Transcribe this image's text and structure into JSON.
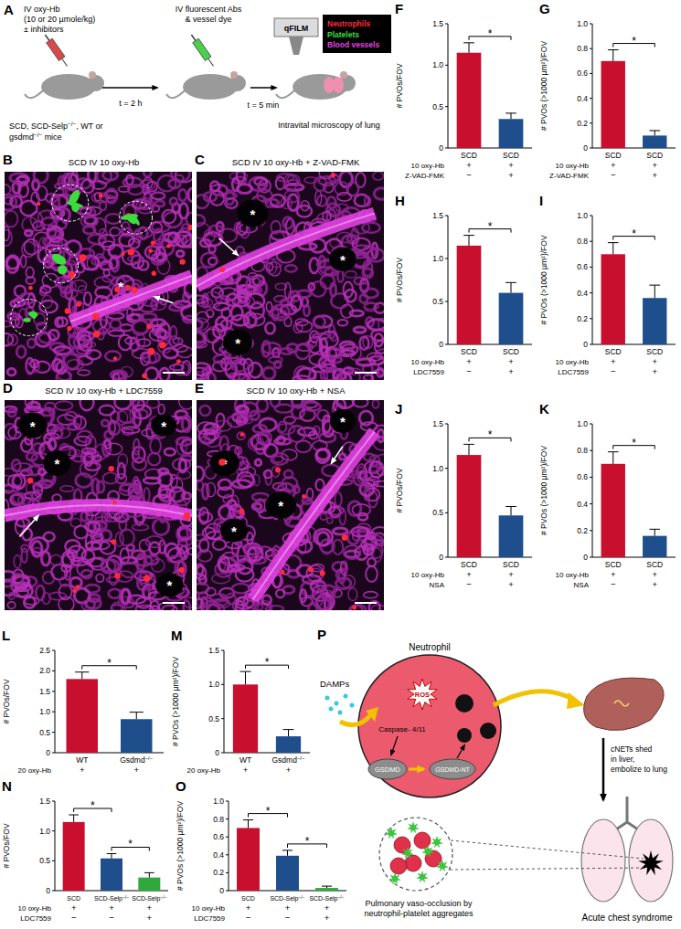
{
  "schematic": {
    "panel": "A",
    "injection": [
      "IV oxy-Hb",
      "(10 or 20 µmole/kg)",
      "± inhibitors"
    ],
    "mice": [
      "SCD, SCD-Selp−/−, WT or",
      "gsdmd−/− mice"
    ],
    "time1": "t = 2 h",
    "stain": [
      "IV fluorescent Abs",
      "& vessel dye"
    ],
    "time2": "t = 5 min",
    "method": "qFILM",
    "legend": [
      {
        "label": "Neutrophils",
        "color": "#ff2a3c"
      },
      {
        "label": "Platelets",
        "color": "#3ddc3d"
      },
      {
        "label": "Blood vessels",
        "color": "#e040e0"
      }
    ],
    "outcome": "Intravital microscopy of lung"
  },
  "images": {
    "marker": "*",
    "panels": [
      {
        "panel": "B",
        "caption": "SCD IV 10 oxy-Hb"
      },
      {
        "panel": "C",
        "caption": "SCD IV 10 oxy-Hb + Z-VAD-FMK"
      },
      {
        "panel": "D",
        "caption": "SCD IV 10 oxy-Hb + LDC7559"
      },
      {
        "panel": "E",
        "caption": "SCD IV 10 oxy-Hb + NSA"
      }
    ]
  },
  "chart_data": [
    {
      "panel": "F",
      "type": "bar",
      "y_label": "# PVOs/FOV",
      "categories": [
        "SCD",
        "SCD"
      ],
      "values": [
        1.15,
        0.35
      ],
      "errors": [
        0.12,
        0.07
      ],
      "colors": [
        "#c8102e",
        "#1f4e8c"
      ],
      "ylim": [
        0,
        1.5
      ],
      "yticks": [
        0,
        0.5,
        {
          "value": 1,
          "label": "1.0"
        },
        1.5
      ],
      "condition_rows": [
        {
          "label": "10 oxy-Hb",
          "marks": [
            "+",
            "+"
          ]
        },
        {
          "label": "Z-VAD-FMK",
          "marks": [
            "−",
            "+"
          ]
        }
      ],
      "annotations": [
        {
          "text": "*",
          "from": 0,
          "to": 1
        }
      ]
    },
    {
      "panel": "G",
      "type": "bar",
      "y_label": "# PVOs (>1000 µm²)/FOV",
      "categories": [
        "SCD",
        "SCD"
      ],
      "values": [
        0.7,
        0.1
      ],
      "errors": [
        0.09,
        0.04
      ],
      "colors": [
        "#c8102e",
        "#1f4e8c"
      ],
      "ylim": [
        0,
        1
      ],
      "yticks": [
        0,
        0.2,
        0.4,
        0.6,
        0.8,
        {
          "value": 1,
          "label": "1.0"
        }
      ],
      "condition_rows": [
        {
          "label": "10 oxy-Hb",
          "marks": [
            "+",
            "+"
          ]
        },
        {
          "label": "Z-VAD-FMK",
          "marks": [
            "−",
            "+"
          ]
        }
      ],
      "annotations": [
        {
          "text": "*",
          "from": 0,
          "to": 1
        }
      ]
    },
    {
      "panel": "H",
      "type": "bar",
      "y_label": "# PVOs/FOV",
      "categories": [
        "SCD",
        "SCD"
      ],
      "values": [
        1.15,
        0.6
      ],
      "errors": [
        0.12,
        0.12
      ],
      "colors": [
        "#c8102e",
        "#1f4e8c"
      ],
      "ylim": [
        0,
        1.5
      ],
      "yticks": [
        0,
        0.5,
        {
          "value": 1,
          "label": "1.0"
        },
        1.5
      ],
      "condition_rows": [
        {
          "label": "10 oxy-Hb",
          "marks": [
            "+",
            "+"
          ]
        },
        {
          "label": "LDC7559",
          "marks": [
            "−",
            "+"
          ]
        }
      ],
      "annotations": [
        {
          "text": "*",
          "from": 0,
          "to": 1
        }
      ]
    },
    {
      "panel": "I",
      "type": "bar",
      "y_label": "# PVOs (>1000 µm²)/FOV",
      "categories": [
        "SCD",
        "SCD"
      ],
      "values": [
        0.7,
        0.36
      ],
      "errors": [
        0.09,
        0.1
      ],
      "colors": [
        "#c8102e",
        "#1f4e8c"
      ],
      "ylim": [
        0,
        1
      ],
      "yticks": [
        0,
        0.2,
        0.4,
        0.6,
        0.8,
        {
          "value": 1,
          "label": "1.0"
        }
      ],
      "condition_rows": [
        {
          "label": "10 oxy-Hb",
          "marks": [
            "+",
            "+"
          ]
        },
        {
          "label": "LDC7559",
          "marks": [
            "−",
            "+"
          ]
        }
      ],
      "annotations": [
        {
          "text": "*",
          "from": 0,
          "to": 1
        }
      ]
    },
    {
      "panel": "J",
      "type": "bar",
      "y_label": "# PVOs/FOV",
      "categories": [
        "SCD",
        "SCD"
      ],
      "values": [
        1.15,
        0.47
      ],
      "errors": [
        0.12,
        0.1
      ],
      "colors": [
        "#c8102e",
        "#1f4e8c"
      ],
      "ylim": [
        0,
        1.5
      ],
      "yticks": [
        0,
        0.5,
        {
          "value": 1,
          "label": "1.0"
        },
        1.5
      ],
      "condition_rows": [
        {
          "label": "10 oxy-Hb",
          "marks": [
            "+",
            "+"
          ]
        },
        {
          "label": "NSA",
          "marks": [
            "−",
            "+"
          ]
        }
      ],
      "annotations": [
        {
          "text": "*",
          "from": 0,
          "to": 1
        }
      ]
    },
    {
      "panel": "K",
      "type": "bar",
      "y_label": "# PVOs (>1000 µm²)/FOV",
      "categories": [
        "SCD",
        "SCD"
      ],
      "values": [
        0.7,
        0.16
      ],
      "errors": [
        0.09,
        0.05
      ],
      "colors": [
        "#c8102e",
        "#1f4e8c"
      ],
      "ylim": [
        0,
        1
      ],
      "yticks": [
        0,
        0.2,
        0.4,
        0.6,
        0.8,
        {
          "value": 1,
          "label": "1.0"
        }
      ],
      "condition_rows": [
        {
          "label": "10 oxy-Hb",
          "marks": [
            "+",
            "+"
          ]
        },
        {
          "label": "NSA",
          "marks": [
            "−",
            "+"
          ]
        }
      ],
      "annotations": [
        {
          "text": "*",
          "from": 0,
          "to": 1
        }
      ]
    },
    {
      "panel": "L",
      "type": "bar",
      "y_label": "# PVOs/FOV",
      "categories": [
        "WT",
        "Gsdmd−/−"
      ],
      "values": [
        1.8,
        0.82
      ],
      "errors": [
        0.17,
        0.17
      ],
      "colors": [
        "#c8102e",
        "#1f4e8c"
      ],
      "ylim": [
        0,
        2.5
      ],
      "yticks": [
        0,
        0.5,
        {
          "value": 1,
          "label": "1.0"
        },
        1.5,
        {
          "value": 2,
          "label": "2.0"
        },
        2.5
      ],
      "condition_rows": [
        {
          "label": "20 oxy-Hb",
          "marks": [
            "+",
            "+"
          ]
        }
      ],
      "annotations": [
        {
          "text": "*",
          "from": 0,
          "to": 1
        }
      ]
    },
    {
      "panel": "M",
      "type": "bar",
      "y_label": "# PVOs (>1000 µm²)/FOV",
      "categories": [
        "WT",
        "Gsdmd−/−"
      ],
      "values": [
        1.0,
        0.24
      ],
      "errors": [
        0.19,
        0.1
      ],
      "colors": [
        "#c8102e",
        "#1f4e8c"
      ],
      "ylim": [
        0,
        1.5
      ],
      "yticks": [
        0,
        0.5,
        {
          "value": 1,
          "label": "1.0"
        },
        1.5
      ],
      "condition_rows": [
        {
          "label": "20 oxy-Hb",
          "marks": [
            "+",
            "+"
          ]
        }
      ],
      "annotations": [
        {
          "text": "*",
          "from": 0,
          "to": 1
        }
      ]
    },
    {
      "panel": "N",
      "type": "bar",
      "y_label": "# PVOs/FOV",
      "categories": [
        "SCD",
        "SCD-Selp−/−",
        "SCD-Selp−/−"
      ],
      "values": [
        1.15,
        0.54,
        0.22
      ],
      "errors": [
        0.12,
        0.08,
        0.08
      ],
      "colors": [
        "#c8102e",
        "#1f4e8c",
        "#2eaa3c"
      ],
      "ylim": [
        0,
        1.5
      ],
      "yticks": [
        0,
        0.5,
        {
          "value": 1,
          "label": "1.0"
        },
        1.5
      ],
      "condition_rows": [
        {
          "label": "10 oxy-Hb",
          "marks": [
            "+",
            "+",
            "+"
          ]
        },
        {
          "label": "LDC7559",
          "marks": [
            "−",
            "−",
            "+"
          ]
        }
      ],
      "annotations": [
        {
          "text": "*",
          "from": 0,
          "to": 1
        },
        {
          "text": "*",
          "from": 1,
          "to": 2
        }
      ]
    },
    {
      "panel": "O",
      "type": "bar",
      "y_label": "# PVOs (>1000 µm²)/FOV",
      "categories": [
        "SCD",
        "SCD-Selp−/−",
        "SCD-Selp−/−"
      ],
      "values": [
        0.7,
        0.39,
        0.03
      ],
      "errors": [
        0.09,
        0.06,
        0.02
      ],
      "colors": [
        "#c8102e",
        "#1f4e8c",
        "#2eaa3c"
      ],
      "ylim": [
        0,
        1
      ],
      "yticks": [
        0,
        0.2,
        0.4,
        0.6,
        0.8,
        {
          "value": 1,
          "label": "1.0"
        }
      ],
      "condition_rows": [
        {
          "label": "10 oxy-Hb",
          "marks": [
            "+",
            "+",
            "+"
          ]
        },
        {
          "label": "LDC7559",
          "marks": [
            "−",
            "−",
            "+"
          ]
        }
      ],
      "annotations": [
        {
          "text": "*",
          "from": 0,
          "to": 1
        },
        {
          "text": "*",
          "from": 1,
          "to": 2
        }
      ]
    }
  ],
  "diagram": {
    "panel": "P",
    "cell": "Neutrophil",
    "input": "DAMPs",
    "ros": "ROS",
    "caspase": "Caspase- 4/11",
    "gsdmd": "GSDMD",
    "gsdmd_nt": "GSDMD-NT",
    "cnets": [
      "cNETs shed",
      "in liver,",
      "embolize to lung"
    ],
    "aggregate": [
      "Pulmonary vaso-occlusion by",
      "neutrophil-platelet aggregates"
    ],
    "outcome": "Acute chest syndrome"
  }
}
